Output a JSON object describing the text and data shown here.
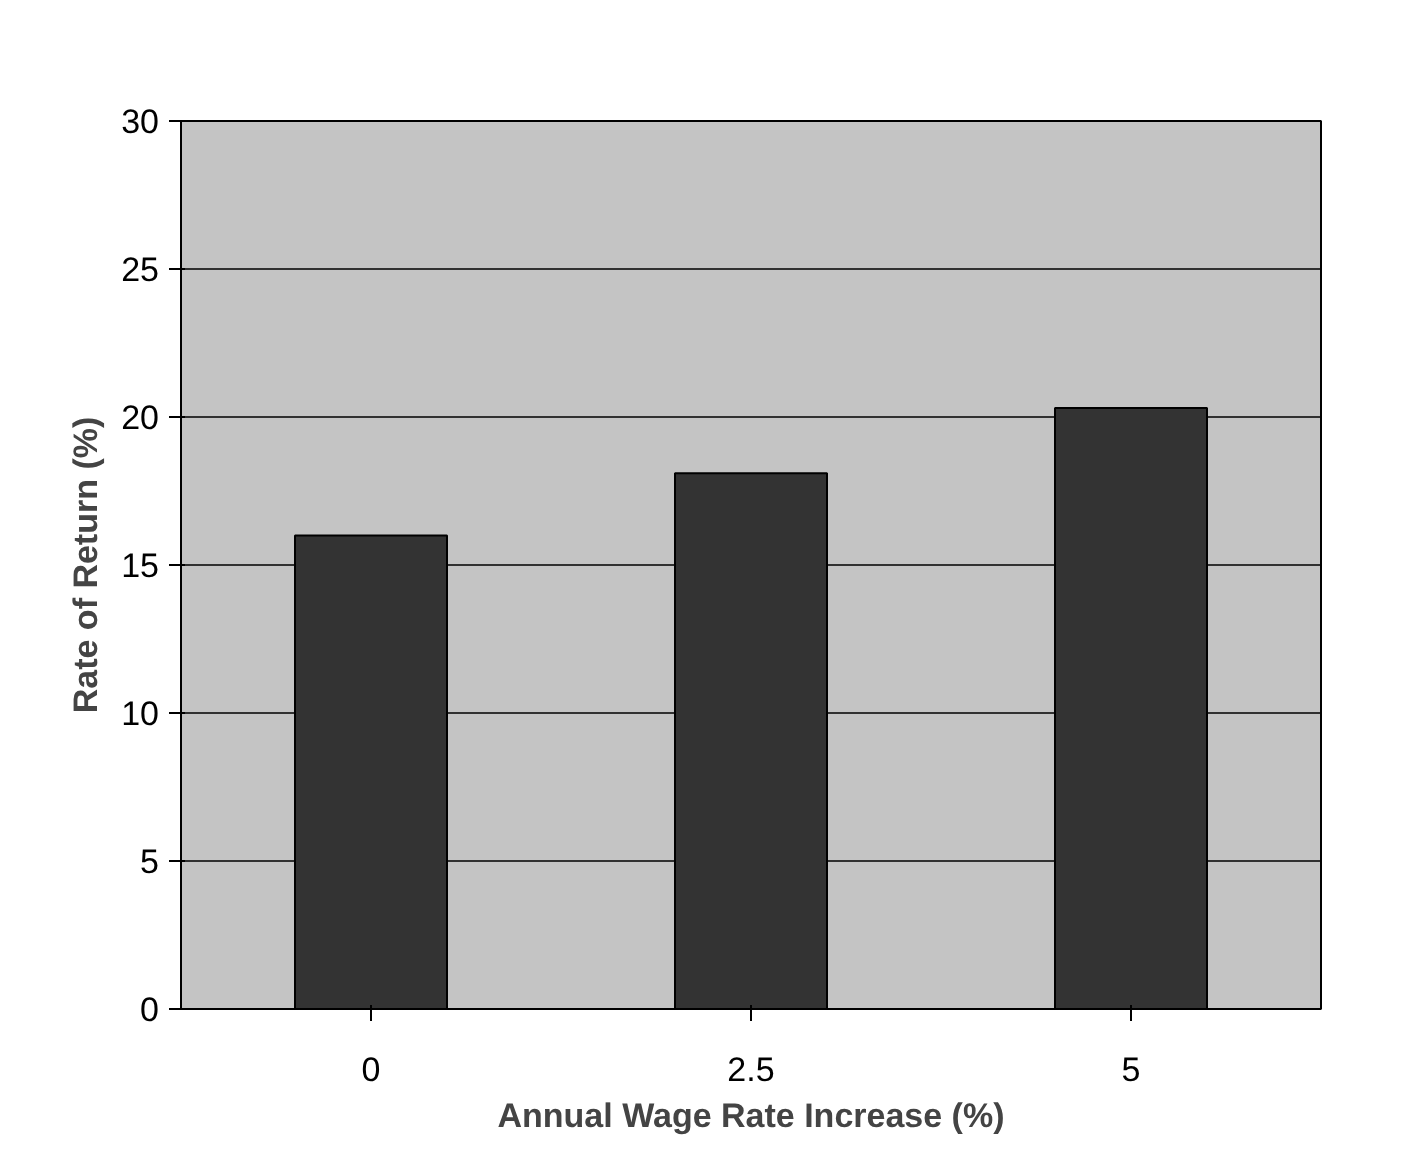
{
  "chart_data": {
    "type": "bar",
    "xlabel": "Annual Wage Rate Increase (%)",
    "ylabel": "Rate of Return (%)",
    "categories": [
      "0",
      "2.5",
      "5"
    ],
    "values": [
      16.0,
      18.1,
      20.3
    ],
    "color": "#333333",
    "ylim": [
      0,
      30
    ],
    "yticks": [
      0,
      5,
      10,
      15,
      20,
      25,
      30
    ],
    "grid": "y"
  }
}
